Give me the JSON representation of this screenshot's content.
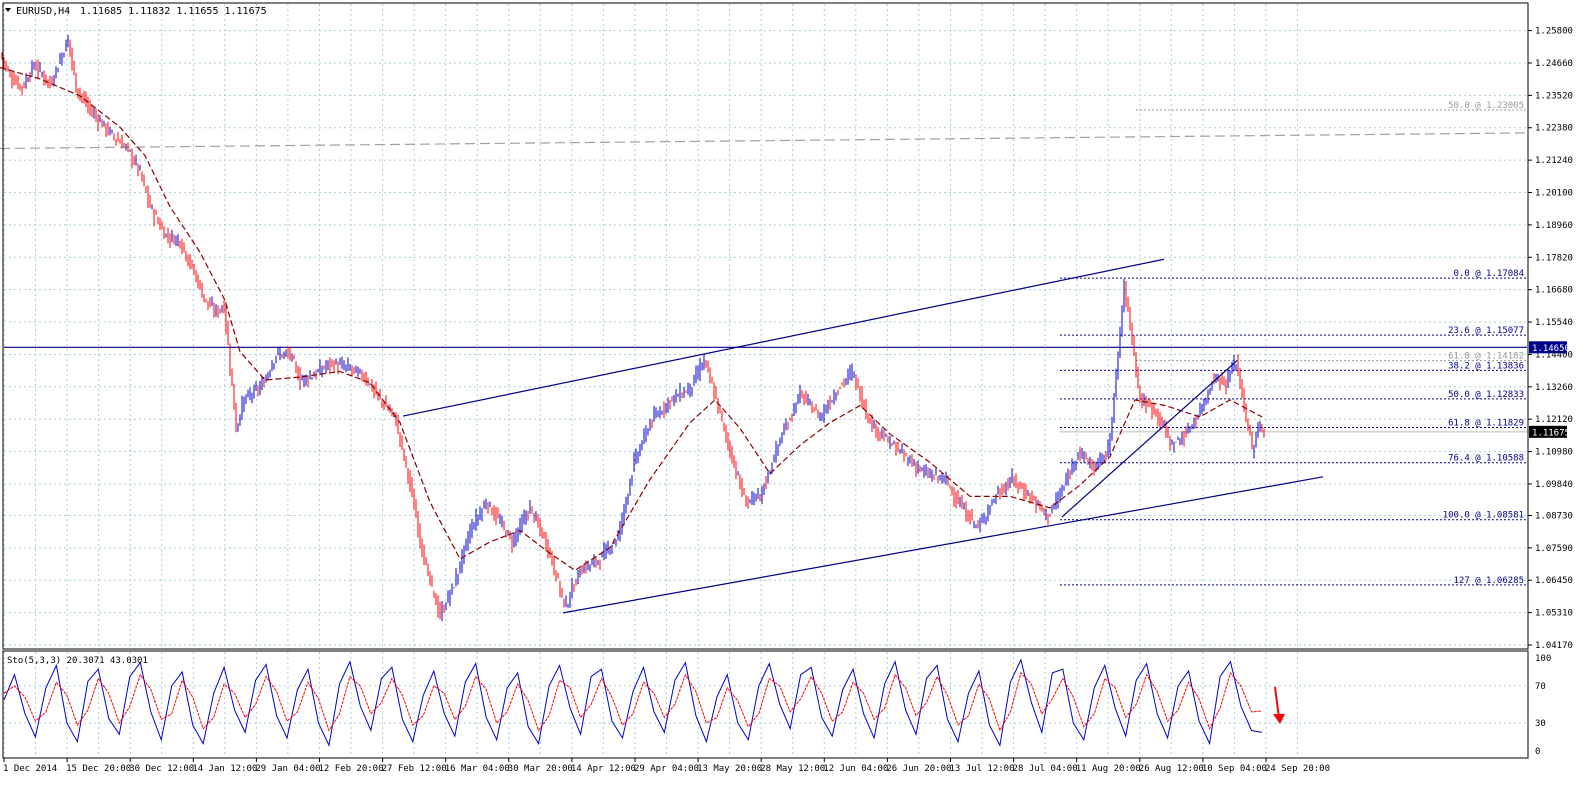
{
  "header": {
    "symbol_label": "EURUSD,H4",
    "ohlc_label": "1.11685 1.11832 1.11655 1.11675"
  },
  "colors": {
    "background": "#ffffff",
    "grid": "#a9cfd8",
    "axis": "#000000",
    "candle_up": "#0000cc",
    "candle_down": "#ff0000",
    "moving_average": "#8b0000",
    "channel": "#00008b",
    "fib": "#00008b",
    "price_tag_bg": "#000000",
    "price_tag_blue": "#00008b",
    "stoch_main": "#0000cc",
    "stoch_signal": "#ff0000",
    "arrow": "#ff0000"
  },
  "icons": {
    "collapse": "triangle-down-icon",
    "arrow": "down-arrow-icon"
  },
  "chart_data": [
    {
      "type": "candlestick",
      "title": "EURUSD,H4",
      "ohlc_last": {
        "open": 1.11685,
        "high": 1.11832,
        "low": 1.11655,
        "close": 1.11675
      },
      "ylim": [
        1.0417,
        1.258
      ],
      "y_ticks": [
        "1.25800",
        "1.24660",
        "1.23520",
        "1.22380",
        "1.21240",
        "1.20100",
        "1.18960",
        "1.17820",
        "1.16680",
        "1.15540",
        "1.14400",
        "1.13260",
        "1.12120",
        "1.10980",
        "1.09840",
        "1.08730",
        "1.07590",
        "1.06450",
        "1.05310",
        "1.04170"
      ],
      "x_ticks": [
        "1 Dec 2014",
        "15 Dec 20:00",
        "30 Dec 12:00",
        "14 Jan 12:00",
        "29 Jan 04:00",
        "12 Feb 20:00",
        "27 Feb 12:00",
        "16 Mar 04:00",
        "30 Mar 20:00",
        "14 Apr 12:00",
        "29 Apr 04:00",
        "13 May 20:00",
        "28 May 12:00",
        "12 Jun 04:00",
        "26 Jun 20:00",
        "13 Jul 12:00",
        "28 Jul 04:00",
        "11 Aug 20:00",
        "26 Aug 12:00",
        "10 Sep 04:00",
        "24 Sep 20:00"
      ],
      "price_path": [
        {
          "x": 0,
          "y": 1.25
        },
        {
          "x": 10,
          "y": 1.242
        },
        {
          "x": 22,
          "y": 1.238
        },
        {
          "x": 34,
          "y": 1.246
        },
        {
          "x": 50,
          "y": 1.239
        },
        {
          "x": 58,
          "y": 1.246
        },
        {
          "x": 68,
          "y": 1.255
        },
        {
          "x": 76,
          "y": 1.238
        },
        {
          "x": 90,
          "y": 1.23
        },
        {
          "x": 110,
          "y": 1.222
        },
        {
          "x": 128,
          "y": 1.216
        },
        {
          "x": 140,
          "y": 1.208
        },
        {
          "x": 150,
          "y": 1.196
        },
        {
          "x": 165,
          "y": 1.186
        },
        {
          "x": 180,
          "y": 1.184
        },
        {
          "x": 195,
          "y": 1.172
        },
        {
          "x": 205,
          "y": 1.163
        },
        {
          "x": 215,
          "y": 1.159
        },
        {
          "x": 224,
          "y": 1.161
        },
        {
          "x": 230,
          "y": 1.14
        },
        {
          "x": 236,
          "y": 1.118
        },
        {
          "x": 244,
          "y": 1.128
        },
        {
          "x": 262,
          "y": 1.133
        },
        {
          "x": 276,
          "y": 1.144
        },
        {
          "x": 290,
          "y": 1.144
        },
        {
          "x": 300,
          "y": 1.135
        },
        {
          "x": 315,
          "y": 1.137
        },
        {
          "x": 330,
          "y": 1.141
        },
        {
          "x": 350,
          "y": 1.139
        },
        {
          "x": 365,
          "y": 1.136
        },
        {
          "x": 380,
          "y": 1.128
        },
        {
          "x": 395,
          "y": 1.122
        },
        {
          "x": 410,
          "y": 1.098
        },
        {
          "x": 425,
          "y": 1.07
        },
        {
          "x": 440,
          "y": 1.052
        },
        {
          "x": 455,
          "y": 1.064
        },
        {
          "x": 470,
          "y": 1.082
        },
        {
          "x": 486,
          "y": 1.092
        },
        {
          "x": 498,
          "y": 1.086
        },
        {
          "x": 512,
          "y": 1.078
        },
        {
          "x": 530,
          "y": 1.09
        },
        {
          "x": 548,
          "y": 1.076
        },
        {
          "x": 565,
          "y": 1.055
        },
        {
          "x": 580,
          "y": 1.068
        },
        {
          "x": 600,
          "y": 1.072
        },
        {
          "x": 618,
          "y": 1.08
        },
        {
          "x": 634,
          "y": 1.106
        },
        {
          "x": 650,
          "y": 1.12
        },
        {
          "x": 670,
          "y": 1.128
        },
        {
          "x": 690,
          "y": 1.132
        },
        {
          "x": 704,
          "y": 1.142
        },
        {
          "x": 716,
          "y": 1.128
        },
        {
          "x": 730,
          "y": 1.11
        },
        {
          "x": 745,
          "y": 1.092
        },
        {
          "x": 760,
          "y": 1.094
        },
        {
          "x": 780,
          "y": 1.114
        },
        {
          "x": 800,
          "y": 1.13
        },
        {
          "x": 820,
          "y": 1.122
        },
        {
          "x": 838,
          "y": 1.132
        },
        {
          "x": 852,
          "y": 1.138
        },
        {
          "x": 870,
          "y": 1.12
        },
        {
          "x": 886,
          "y": 1.114
        },
        {
          "x": 905,
          "y": 1.108
        },
        {
          "x": 925,
          "y": 1.102
        },
        {
          "x": 945,
          "y": 1.1
        },
        {
          "x": 962,
          "y": 1.09
        },
        {
          "x": 978,
          "y": 1.083
        },
        {
          "x": 995,
          "y": 1.094
        },
        {
          "x": 1012,
          "y": 1.1
        },
        {
          "x": 1030,
          "y": 1.094
        },
        {
          "x": 1048,
          "y": 1.087
        },
        {
          "x": 1062,
          "y": 1.096
        },
        {
          "x": 1078,
          "y": 1.11
        },
        {
          "x": 1094,
          "y": 1.104
        },
        {
          "x": 1108,
          "y": 1.11
        },
        {
          "x": 1116,
          "y": 1.136
        },
        {
          "x": 1124,
          "y": 1.168
        },
        {
          "x": 1132,
          "y": 1.15
        },
        {
          "x": 1140,
          "y": 1.128
        },
        {
          "x": 1156,
          "y": 1.124
        },
        {
          "x": 1172,
          "y": 1.112
        },
        {
          "x": 1186,
          "y": 1.116
        },
        {
          "x": 1200,
          "y": 1.124
        },
        {
          "x": 1214,
          "y": 1.136
        },
        {
          "x": 1226,
          "y": 1.134
        },
        {
          "x": 1236,
          "y": 1.142
        },
        {
          "x": 1244,
          "y": 1.126
        },
        {
          "x": 1252,
          "y": 1.11
        },
        {
          "x": 1258,
          "y": 1.118
        },
        {
          "x": 1264,
          "y": 1.117
        }
      ],
      "moving_average_path": [
        {
          "x": 0,
          "y": 1.245
        },
        {
          "x": 40,
          "y": 1.241
        },
        {
          "x": 80,
          "y": 1.235
        },
        {
          "x": 120,
          "y": 1.224
        },
        {
          "x": 145,
          "y": 1.214
        },
        {
          "x": 170,
          "y": 1.196
        },
        {
          "x": 200,
          "y": 1.18
        },
        {
          "x": 225,
          "y": 1.163
        },
        {
          "x": 240,
          "y": 1.145
        },
        {
          "x": 265,
          "y": 1.135
        },
        {
          "x": 300,
          "y": 1.136
        },
        {
          "x": 340,
          "y": 1.138
        },
        {
          "x": 370,
          "y": 1.134
        },
        {
          "x": 400,
          "y": 1.12
        },
        {
          "x": 430,
          "y": 1.092
        },
        {
          "x": 460,
          "y": 1.072
        },
        {
          "x": 490,
          "y": 1.078
        },
        {
          "x": 520,
          "y": 1.082
        },
        {
          "x": 550,
          "y": 1.074
        },
        {
          "x": 575,
          "y": 1.068
        },
        {
          "x": 610,
          "y": 1.076
        },
        {
          "x": 650,
          "y": 1.1
        },
        {
          "x": 690,
          "y": 1.12
        },
        {
          "x": 715,
          "y": 1.128
        },
        {
          "x": 740,
          "y": 1.118
        },
        {
          "x": 770,
          "y": 1.102
        },
        {
          "x": 800,
          "y": 1.112
        },
        {
          "x": 830,
          "y": 1.12
        },
        {
          "x": 860,
          "y": 1.126
        },
        {
          "x": 890,
          "y": 1.116
        },
        {
          "x": 930,
          "y": 1.106
        },
        {
          "x": 970,
          "y": 1.094
        },
        {
          "x": 1010,
          "y": 1.094
        },
        {
          "x": 1050,
          "y": 1.09
        },
        {
          "x": 1080,
          "y": 1.098
        },
        {
          "x": 1110,
          "y": 1.108
        },
        {
          "x": 1135,
          "y": 1.128
        },
        {
          "x": 1165,
          "y": 1.126
        },
        {
          "x": 1200,
          "y": 1.122
        },
        {
          "x": 1230,
          "y": 1.128
        },
        {
          "x": 1262,
          "y": 1.122
        }
      ],
      "horizontal_levels": [
        {
          "value": 1.1465,
          "label": "1.14650",
          "style": "solid"
        },
        {
          "value": 1.11675,
          "label": "1.11675",
          "style": "current"
        }
      ],
      "long_term_average": [
        {
          "x": 0,
          "y": 1.2165
        },
        {
          "x": 1530,
          "y": 1.222
        }
      ],
      "channel_lines": [
        {
          "from": {
            "x": 403,
            "y": 1.1223
          },
          "to": {
            "x": 1164,
            "y": 1.1775
          }
        },
        {
          "from": {
            "x": 563,
            "y": 1.053
          },
          "to": {
            "x": 1323,
            "y": 1.1009
          }
        },
        {
          "from": {
            "x": 1062,
            "y": 1.0868
          },
          "to": {
            "x": 1237,
            "y": 1.1418
          }
        }
      ],
      "fibonacci_levels": [
        {
          "label": "50.0 @ 1.23005",
          "value": 1.23005,
          "faded": true
        },
        {
          "label": "0.0 @ 1.17084",
          "value": 1.17084
        },
        {
          "label": "23.6 @ 1.15077",
          "value": 1.15077
        },
        {
          "label": "61.8 @ 1.14182",
          "value": 1.14182,
          "faded": true
        },
        {
          "label": "38.2 @ 1.13836",
          "value": 1.13836
        },
        {
          "label": "50.0 @ 1.12833",
          "value": 1.12833
        },
        {
          "label": "61.8 @ 1.11829",
          "value": 1.11829
        },
        {
          "label": "76.4 @ 1.10588",
          "value": 1.10588
        },
        {
          "label": "100.0 @ 1.08581",
          "value": 1.08581
        },
        {
          "label": "127 @ 1.06285",
          "value": 1.06285
        }
      ]
    },
    {
      "type": "line",
      "title": "Sto(5,3,3) 20.3071 43.0301",
      "indicator": "Stochastic oscillator",
      "main_value": 20.3071,
      "signal_value": 43.0301,
      "ylim": [
        0,
        100
      ],
      "y_ticks": [
        "100",
        "70",
        "30",
        "0"
      ],
      "levels": [
        30,
        70
      ],
      "series": [
        {
          "values": [
            55,
            82,
            40,
            15,
            68,
            92,
            30,
            10,
            75,
            88,
            35,
            18,
            80,
            95,
            42,
            12,
            70,
            85,
            28,
            8,
            62,
            90,
            44,
            20,
            76,
            93,
            38,
            14,
            66,
            88,
            30,
            6,
            72,
            96,
            48,
            22,
            78,
            90,
            34,
            10,
            60,
            86,
            40,
            16,
            74,
            94,
            36,
            12,
            68,
            84,
            26,
            8,
            70,
            92,
            46,
            18,
            80,
            88,
            32,
            14,
            64,
            90,
            42,
            20,
            76,
            95,
            38,
            10,
            58,
            82,
            30,
            12,
            70,
            94,
            50,
            24,
            82,
            90,
            36,
            16,
            66,
            88,
            40,
            14,
            72,
            96,
            44,
            18,
            78,
            92,
            34,
            10,
            62,
            86,
            28,
            6,
            74,
            98,
            52,
            20,
            84,
            88,
            30,
            12,
            68,
            92,
            46,
            16,
            76,
            94,
            40,
            14,
            70,
            86,
            32,
            8,
            80,
            96,
            48,
            22,
            20
          ]
        },
        {
          "values": [
            62,
            70,
            58,
            32,
            42,
            74,
            60,
            28,
            44,
            78,
            62,
            30,
            48,
            82,
            66,
            34,
            40,
            76,
            58,
            24,
            36,
            72,
            62,
            36,
            50,
            80,
            64,
            32,
            42,
            74,
            56,
            22,
            40,
            80,
            70,
            40,
            52,
            78,
            60,
            28,
            38,
            70,
            62,
            34,
            48,
            80,
            66,
            30,
            42,
            72,
            54,
            22,
            38,
            76,
            68,
            36,
            50,
            78,
            58,
            28,
            40,
            74,
            62,
            36,
            50,
            82,
            64,
            30,
            36,
            68,
            54,
            26,
            40,
            78,
            70,
            42,
            56,
            80,
            62,
            32,
            42,
            74,
            62,
            34,
            46,
            82,
            68,
            38,
            52,
            80,
            60,
            28,
            38,
            72,
            56,
            22,
            42,
            84,
            72,
            40,
            56,
            78,
            58,
            26,
            40,
            78,
            68,
            36,
            50,
            82,
            64,
            32,
            44,
            74,
            56,
            24,
            46,
            84,
            70,
            42,
            43
          ]
        }
      ]
    }
  ]
}
